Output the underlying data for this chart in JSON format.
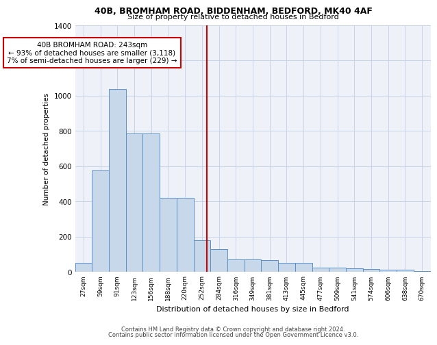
{
  "title1": "40B, BROMHAM ROAD, BIDDENHAM, BEDFORD, MK40 4AF",
  "title2": "Size of property relative to detached houses in Bedford",
  "xlabel": "Distribution of detached houses by size in Bedford",
  "ylabel": "Number of detached properties",
  "bar_labels": [
    "27sqm",
    "59sqm",
    "91sqm",
    "123sqm",
    "156sqm",
    "188sqm",
    "220sqm",
    "252sqm",
    "284sqm",
    "316sqm",
    "349sqm",
    "381sqm",
    "413sqm",
    "445sqm",
    "477sqm",
    "509sqm",
    "541sqm",
    "574sqm",
    "606sqm",
    "638sqm",
    "670sqm"
  ],
  "bar_values": [
    50,
    575,
    1040,
    785,
    785,
    420,
    420,
    180,
    130,
    70,
    70,
    65,
    50,
    50,
    25,
    25,
    20,
    15,
    10,
    10,
    5
  ],
  "bar_color": "#c8d8eb",
  "bar_edge_color": "#5b8fc9",
  "grid_color": "#c8d4e8",
  "background_color": "#eef2f8",
  "vline_color": "#cc0000",
  "annotation_text": "40B BROMHAM ROAD: 243sqm\n← 93% of detached houses are smaller (3,118)\n7% of semi-detached houses are larger (229) →",
  "annotation_box_color": "#ffffff",
  "annotation_box_edge": "#cc0000",
  "ylim": [
    0,
    1400
  ],
  "yticks": [
    0,
    200,
    400,
    600,
    800,
    1000,
    1200,
    1400
  ],
  "footer1": "Contains HM Land Registry data © Crown copyright and database right 2024.",
  "footer2": "Contains public sector information licensed under the Open Government Licence v3.0."
}
